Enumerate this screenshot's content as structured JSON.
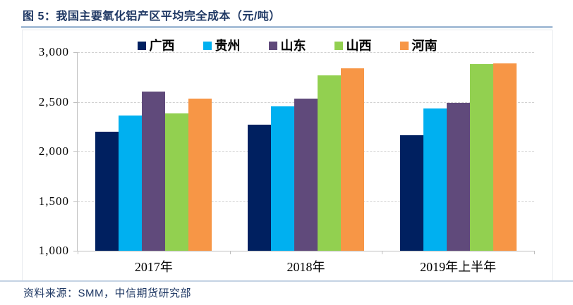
{
  "header": {
    "title": "图 5：我国主要氧化铝产区平均完全成本（元/吨）"
  },
  "footer": {
    "source": "资料来源：SMM，中信期货研究部"
  },
  "colors": {
    "title_navy": "#1F3864",
    "title_rule": "#A8BFD8",
    "footer_rule": "#C4D3E3",
    "axis_line": "#BFBFBF",
    "gridline": "#D1D1D1"
  },
  "chart_data": {
    "type": "bar",
    "title": "我国主要氧化铝产区平均完全成本（元/吨）",
    "categories": [
      "2017年",
      "2018年",
      "2019年上半年"
    ],
    "series": [
      {
        "name": "广西",
        "color": "#002060",
        "values": [
          2200,
          2270,
          2160
        ]
      },
      {
        "name": "贵州",
        "color": "#00B0F0",
        "values": [
          2360,
          2455,
          2430
        ]
      },
      {
        "name": "山东",
        "color": "#604A7B",
        "values": [
          2600,
          2535,
          2490
        ]
      },
      {
        "name": "山西",
        "color": "#92D050",
        "values": [
          2385,
          2765,
          2880
        ]
      },
      {
        "name": "河南",
        "color": "#F79646",
        "values": [
          2535,
          2840,
          2890
        ]
      }
    ],
    "xlabel": "",
    "ylabel": "",
    "ylim": [
      1000,
      3000
    ],
    "yticks": [
      1000,
      1500,
      2000,
      2500,
      3000
    ],
    "ytick_labels": [
      "1,000",
      "1,500",
      "2,000",
      "2,500",
      "3,000"
    ],
    "grid": "horizontal-dashed",
    "legend_position": "top"
  }
}
